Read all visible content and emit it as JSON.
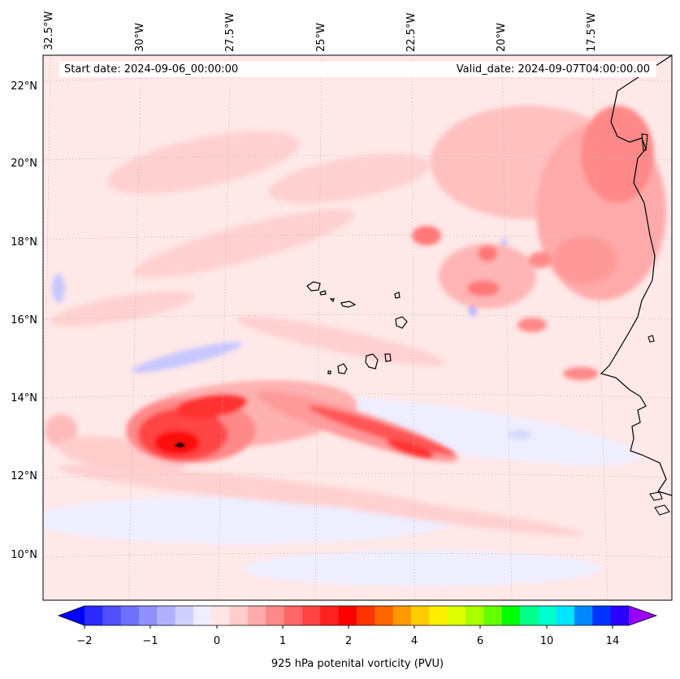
{
  "map": {
    "start_date": "Start date: 2024-09-06_00:00:00",
    "valid_date": "Valid_date: 2024-09-07T04:00:00.00",
    "lon_labels": [
      "32.5°W",
      "30°W",
      "27.5°W",
      "25°W",
      "22.5°W",
      "20°W",
      "17.5°W"
    ],
    "lat_labels": [
      "22°N",
      "20°N",
      "18°N",
      "16°N",
      "14°N",
      "12°N",
      "10°N"
    ],
    "features": [
      "Cape Verde islands",
      "West African coastline"
    ]
  },
  "colorbar": {
    "title": "925 hPa potenital vorticity (PVU)",
    "ticks": [
      "−2",
      "−1",
      "0",
      "1",
      "2",
      "4",
      "6",
      "10",
      "14"
    ],
    "colors": [
      "#0000ff",
      "#2a2aff",
      "#5050ff",
      "#7070ff",
      "#9090ff",
      "#b0b0ff",
      "#d0d0ff",
      "#eeeeff",
      "#ffe5e5",
      "#ffcccc",
      "#ffaaaa",
      "#ff8888",
      "#ff6666",
      "#ff4444",
      "#ff2222",
      "#ff0000",
      "#ff3300",
      "#ff6600",
      "#ff9900",
      "#ffcc00",
      "#ffee00",
      "#ddff00",
      "#aaff00",
      "#66ff00",
      "#00ff00",
      "#00ff88",
      "#00ffcc",
      "#00e5ff",
      "#0088ff",
      "#0033ff",
      "#2a00ff",
      "#9900ff"
    ]
  }
}
